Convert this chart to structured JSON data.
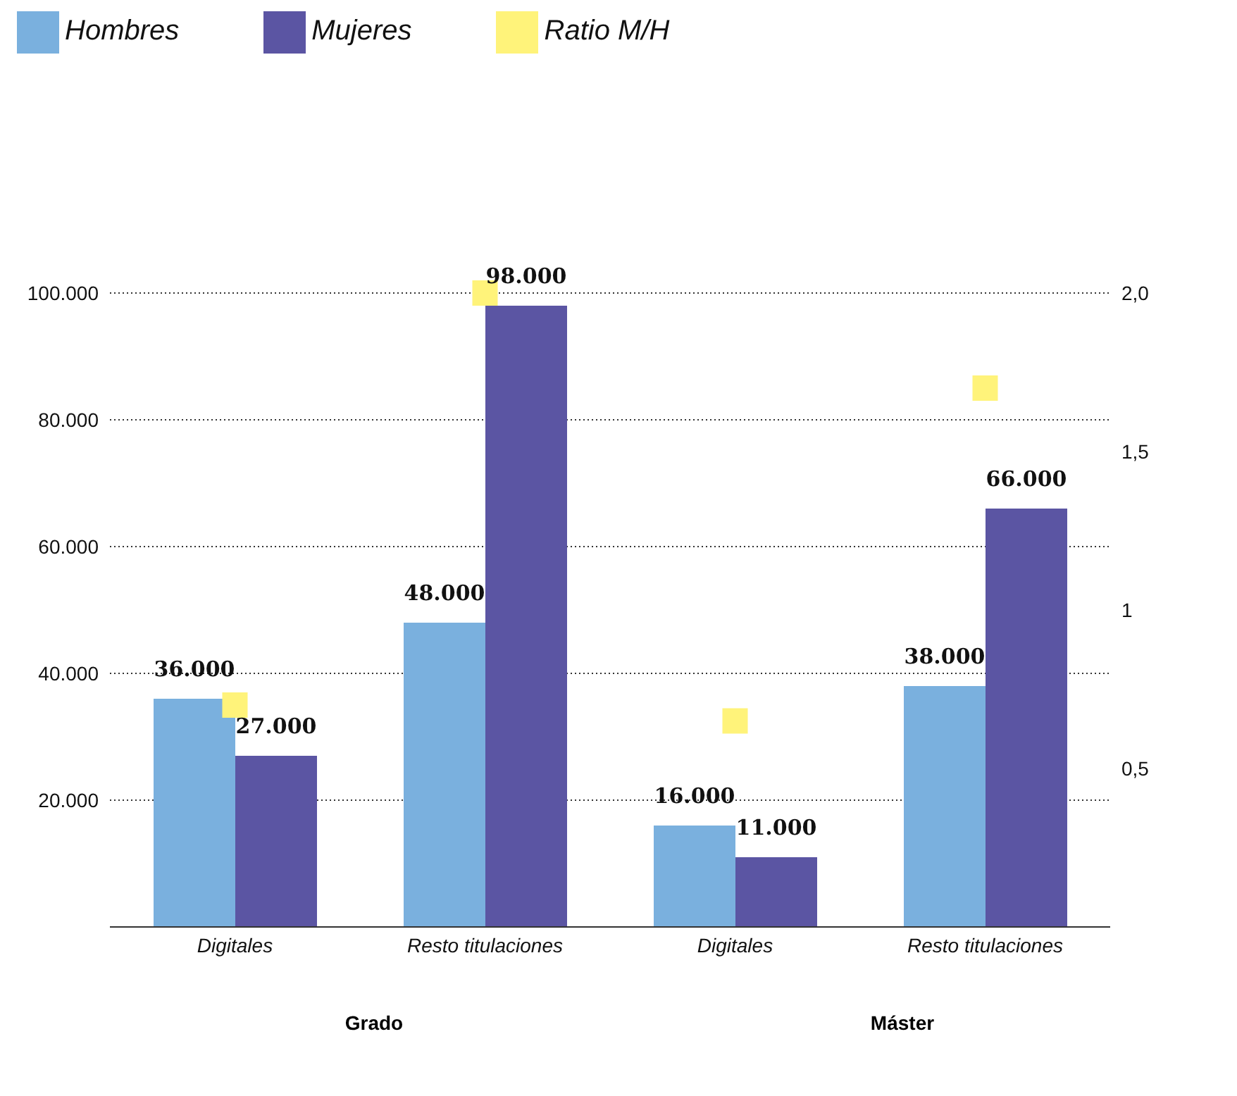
{
  "chart_data": {
    "type": "bar",
    "categories": [
      "Digitales",
      "Resto titulaciones",
      "Digitales",
      "Resto titulaciones"
    ],
    "series": [
      {
        "name": "Hombres",
        "color": "#7ab0de",
        "values": [
          36000,
          48000,
          16000,
          38000
        ],
        "value_labels": [
          "36.000",
          "48.000",
          "16.000",
          "38.000"
        ]
      },
      {
        "name": "Mujeres",
        "color": "#5b55a3",
        "values": [
          27000,
          98000,
          11000,
          66000
        ],
        "value_labels": [
          "27.000",
          "98.000",
          "11.000",
          "66.000"
        ]
      },
      {
        "name": "Ratio M/H",
        "type": "scatter",
        "axis": "y2",
        "color": "#fff37a",
        "values": [
          0.7,
          2.0,
          0.65,
          1.7
        ]
      }
    ],
    "ylim": [
      0,
      100000
    ],
    "yticks": [
      {
        "value": 20000,
        "label": "20.000"
      },
      {
        "value": 40000,
        "label": "40.000"
      },
      {
        "value": 60000,
        "label": "60.000"
      },
      {
        "value": 80000,
        "label": "80.000"
      },
      {
        "value": 100000,
        "label": "100.000"
      }
    ],
    "y2lim": [
      0,
      2
    ],
    "y2ticks": [
      {
        "value": 0.5,
        "label": "0,5"
      },
      1,
      {
        "value": 1.5,
        "label": "1,5"
      },
      {
        "value": 2,
        "label": "2,0"
      }
    ],
    "annotations": [
      "Grado",
      "Máster"
    ],
    "grid": "y",
    "legend": "top left",
    "marker": "square"
  }
}
